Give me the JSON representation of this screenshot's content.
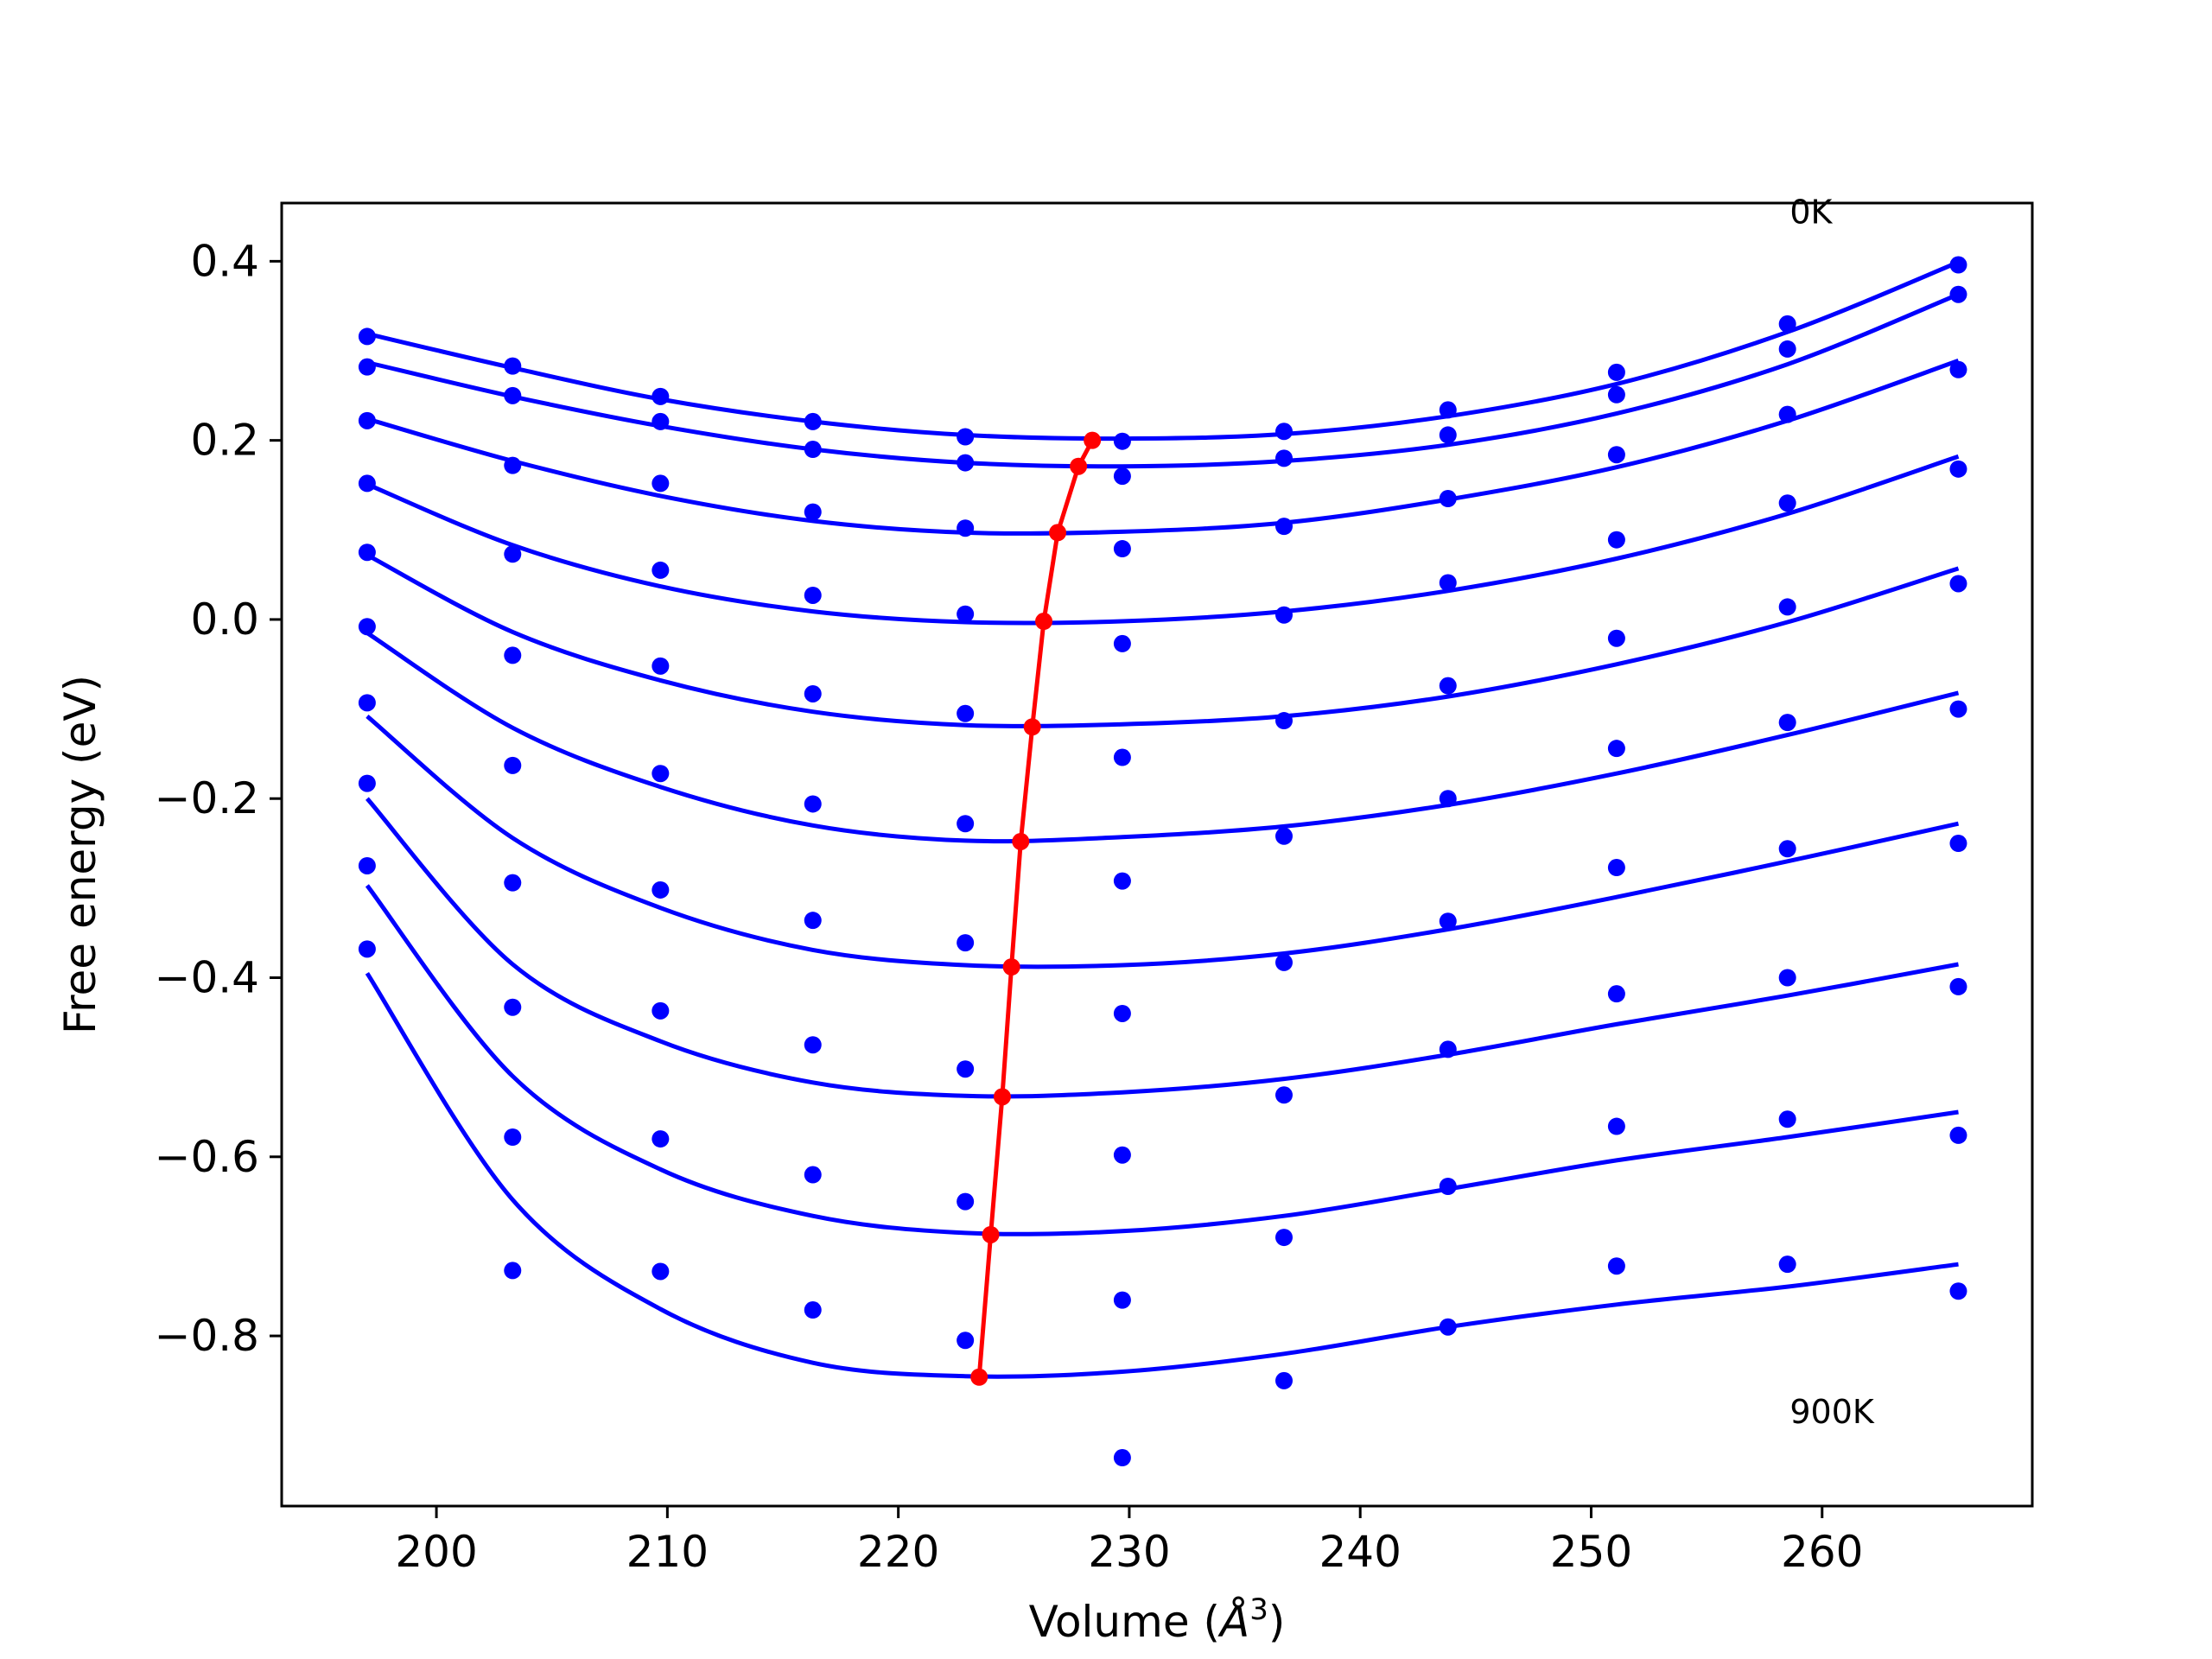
{
  "chart_data": {
    "type": "line",
    "xlabel_text": "Volume (",
    "xlabel_unit": "Å",
    "xlabel_exp": "3",
    "xlabel_close": ")",
    "ylabel": "Free energy (eV)",
    "xlim": [
      193.3,
      269.1
    ],
    "ylim": [
      -0.99,
      0.465
    ],
    "xticks": [
      200,
      210,
      220,
      230,
      240,
      250,
      260
    ],
    "yticks": [
      -0.8,
      -0.6,
      -0.4,
      -0.2,
      0.0,
      0.2,
      0.4
    ],
    "ytick_labels": [
      "−0.8",
      "−0.6",
      "−0.4",
      "−0.2",
      "0.0",
      "0.2",
      "0.4"
    ],
    "grid": false,
    "annotations": [
      {
        "text": "0K",
        "x": 258.6,
        "y": 0.455
      },
      {
        "text": "900K",
        "x": 258.6,
        "y": -0.885
      }
    ],
    "volumes": [
      197.0,
      203.3,
      209.7,
      216.3,
      222.9,
      229.7,
      236.7,
      243.8,
      251.1,
      258.5,
      265.9
    ],
    "series": [
      {
        "temperature_index": 0,
        "points": [
          0.316,
          0.283,
          0.249,
          0.221,
          0.204,
          0.199,
          0.21,
          0.234,
          0.276,
          0.33,
          0.396
        ],
        "fit": [
          0.319,
          0.281,
          0.246,
          0.221,
          0.206,
          0.202,
          0.207,
          0.227,
          0.263,
          0.321,
          0.399
        ]
      },
      {
        "temperature_index": 1,
        "points": [
          0.282,
          0.25,
          0.221,
          0.19,
          0.175,
          0.16,
          0.18,
          0.206,
          0.251,
          0.302,
          0.363
        ],
        "fit": [
          0.287,
          0.249,
          0.216,
          0.19,
          0.175,
          0.171,
          0.177,
          0.195,
          0.23,
          0.285,
          0.363
        ]
      },
      {
        "temperature_index": 2,
        "points": [
          0.222,
          0.172,
          0.152,
          0.12,
          0.102,
          0.079,
          0.104,
          0.135,
          0.184,
          0.229,
          0.279
        ],
        "fit": [
          0.224,
          0.177,
          0.138,
          0.11,
          0.097,
          0.098,
          0.108,
          0.134,
          0.17,
          0.222,
          0.289
        ]
      },
      {
        "temperature_index": 3,
        "points": [
          0.152,
          0.073,
          0.055,
          0.027,
          0.006,
          -0.027,
          0.005,
          0.041,
          0.089,
          0.13,
          0.168
        ],
        "fit": [
          0.151,
          0.083,
          0.037,
          0.009,
          -0.003,
          -0.002,
          0.009,
          0.032,
          0.068,
          0.118,
          0.182
        ]
      },
      {
        "temperature_index": 4,
        "points": [
          0.075,
          -0.04,
          -0.052,
          -0.083,
          -0.105,
          -0.154,
          -0.113,
          -0.074,
          -0.021,
          0.014,
          0.04
        ],
        "fit": [
          0.072,
          -0.014,
          -0.068,
          -0.103,
          -0.118,
          -0.117,
          -0.108,
          -0.086,
          -0.05,
          -0.003,
          0.057
        ]
      },
      {
        "temperature_index": 5,
        "points": [
          -0.008,
          -0.163,
          -0.172,
          -0.206,
          -0.228,
          -0.292,
          -0.242,
          -0.2,
          -0.144,
          -0.115,
          -0.1
        ],
        "fit": [
          -0.015,
          -0.121,
          -0.187,
          -0.23,
          -0.247,
          -0.243,
          -0.231,
          -0.207,
          -0.172,
          -0.129,
          -0.082
        ]
      },
      {
        "temperature_index": 6,
        "points": [
          -0.093,
          -0.294,
          -0.302,
          -0.336,
          -0.361,
          -0.44,
          -0.383,
          -0.337,
          -0.277,
          -0.256,
          -0.25
        ],
        "fit": [
          -0.108,
          -0.244,
          -0.322,
          -0.369,
          -0.386,
          -0.386,
          -0.373,
          -0.346,
          -0.31,
          -0.27,
          -0.228
        ]
      },
      {
        "temperature_index": 7,
        "points": [
          -0.183,
          -0.433,
          -0.437,
          -0.475,
          -0.502,
          -0.598,
          -0.531,
          -0.48,
          -0.418,
          -0.4,
          -0.41
        ],
        "fit": [
          -0.2,
          -0.385,
          -0.471,
          -0.517,
          -0.532,
          -0.528,
          -0.513,
          -0.486,
          -0.452,
          -0.42,
          -0.385
        ]
      },
      {
        "temperature_index": 8,
        "points": [
          -0.275,
          -0.578,
          -0.58,
          -0.62,
          -0.65,
          -0.76,
          -0.69,
          -0.633,
          -0.566,
          -0.558,
          -0.576
        ],
        "fit": [
          -0.297,
          -0.51,
          -0.614,
          -0.666,
          -0.685,
          -0.683,
          -0.666,
          -0.636,
          -0.604,
          -0.578,
          -0.55
        ]
      },
      {
        "temperature_index": 9,
        "points": [
          -0.368,
          -0.727,
          -0.728,
          -0.771,
          -0.805,
          -0.936,
          -0.85,
          -0.79,
          -0.722,
          -0.72,
          -0.75
        ],
        "fit": [
          -0.395,
          -0.648,
          -0.77,
          -0.83,
          -0.845,
          -0.84,
          -0.82,
          -0.79,
          -0.765,
          -0.745,
          -0.72
        ]
      }
    ],
    "minima_curve": {
      "x": [
        228.4,
        227.8,
        226.9,
        226.3,
        225.8,
        225.3,
        224.9,
        224.5,
        224.0,
        223.5
      ],
      "y": [
        0.2,
        0.171,
        0.097,
        -0.002,
        -0.12,
        -0.248,
        -0.388,
        -0.533,
        -0.687,
        -0.846
      ]
    },
    "colors": {
      "fits": "#0000ff",
      "points": "#0000ff",
      "minima": "#ff0000",
      "frame": "#000000"
    }
  }
}
